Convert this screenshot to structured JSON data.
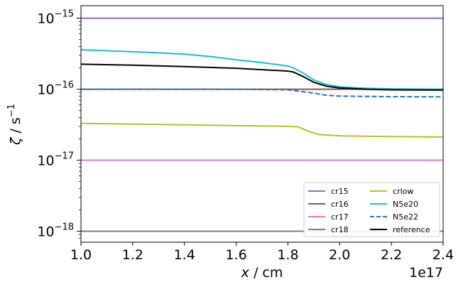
{
  "chart_data": {
    "type": "line",
    "xlabel": "x / cm",
    "ylabel": "ζ / s⁻¹",
    "x_offset_label": "1e17",
    "xlim": [
      1.0,
      2.4
    ],
    "ylim": [
      7e-19,
      1.5e-15
    ],
    "yscale": "log",
    "grid": false,
    "legend_position": "lower-right",
    "legend_columns": 2,
    "x_ticks": [
      1.0,
      1.2,
      1.4,
      1.6,
      1.8,
      2.0,
      2.2,
      2.4
    ],
    "x_tick_labels": [
      "1.0",
      "1.2",
      "1.4",
      "1.6",
      "1.8",
      "2.0",
      "2.2",
      "2.4"
    ],
    "y_major_ticks": [
      {
        "value": 1e-18,
        "base": "10",
        "exp": "−18"
      },
      {
        "value": 1e-17,
        "base": "10",
        "exp": "−17"
      },
      {
        "value": 1e-16,
        "base": "10",
        "exp": "−16"
      },
      {
        "value": 1e-15,
        "base": "10",
        "exp": "−15"
      }
    ],
    "series": [
      {
        "name": "cr15",
        "color": "#9467bd",
        "dash": "solid",
        "points": [
          [
            1.0,
            1e-15
          ],
          [
            2.4,
            1e-15
          ]
        ]
      },
      {
        "name": "cr16",
        "color": "#8c564b",
        "dash": "solid",
        "points": [
          [
            1.0,
            1e-16
          ],
          [
            2.4,
            1e-16
          ]
        ]
      },
      {
        "name": "cr17",
        "color": "#e377c2",
        "dash": "solid",
        "points": [
          [
            1.0,
            1e-17
          ],
          [
            2.4,
            1e-17
          ]
        ]
      },
      {
        "name": "cr18",
        "color": "#7f7f7f",
        "dash": "solid",
        "points": [
          [
            1.0,
            1e-18
          ],
          [
            2.4,
            1e-18
          ]
        ]
      },
      {
        "name": "crlow",
        "color": "#bcbd22",
        "dash": "solid",
        "points": [
          [
            1.0,
            3.3e-17
          ],
          [
            1.2,
            3.22e-17
          ],
          [
            1.4,
            3.15e-17
          ],
          [
            1.6,
            3.07e-17
          ],
          [
            1.8,
            3e-17
          ],
          [
            1.84,
            2.95e-17
          ],
          [
            1.88,
            2.55e-17
          ],
          [
            1.92,
            2.3e-17
          ],
          [
            2.0,
            2.2e-17
          ],
          [
            2.1,
            2.18e-17
          ],
          [
            2.2,
            2.15e-17
          ],
          [
            2.4,
            2.12e-17
          ]
        ]
      },
      {
        "name": "N5e20",
        "color": "#17becf",
        "dash": "solid",
        "points": [
          [
            1.0,
            3.6e-16
          ],
          [
            1.1,
            3.47e-16
          ],
          [
            1.2,
            3.37e-16
          ],
          [
            1.3,
            3.25e-16
          ],
          [
            1.4,
            3.12e-16
          ],
          [
            1.5,
            2.88e-16
          ],
          [
            1.6,
            2.6e-16
          ],
          [
            1.7,
            2.37e-16
          ],
          [
            1.8,
            2.12e-16
          ],
          [
            1.82,
            2e-16
          ],
          [
            1.86,
            1.68e-16
          ],
          [
            1.9,
            1.35e-16
          ],
          [
            1.95,
            1.16e-16
          ],
          [
            2.0,
            1.08e-16
          ],
          [
            2.1,
            1.03e-16
          ],
          [
            2.2,
            1.01e-16
          ],
          [
            2.4,
            1e-16
          ]
        ]
      },
      {
        "name": "N5e22",
        "color": "#1f77b4",
        "dash": "dashed",
        "points": [
          [
            1.0,
            1e-16
          ],
          [
            1.6,
            1e-16
          ],
          [
            1.8,
            9.8e-17
          ],
          [
            1.84,
            9.4e-17
          ],
          [
            1.9,
            8.8e-17
          ],
          [
            1.95,
            8.2e-17
          ],
          [
            2.0,
            8e-17
          ],
          [
            2.2,
            7.85e-17
          ],
          [
            2.4,
            7.8e-17
          ]
        ]
      },
      {
        "name": "reference",
        "color": "#000000",
        "dash": "solid",
        "points": [
          [
            1.0,
            2.25e-16
          ],
          [
            1.2,
            2.18e-16
          ],
          [
            1.4,
            2.08e-16
          ],
          [
            1.6,
            1.97e-16
          ],
          [
            1.7,
            1.88e-16
          ],
          [
            1.8,
            1.8e-16
          ],
          [
            1.82,
            1.75e-16
          ],
          [
            1.86,
            1.5e-16
          ],
          [
            1.9,
            1.25e-16
          ],
          [
            1.95,
            1.1e-16
          ],
          [
            2.0,
            1.04e-16
          ],
          [
            2.1,
            1e-16
          ],
          [
            2.2,
            9.8e-17
          ],
          [
            2.4,
            9.7e-17
          ]
        ]
      }
    ]
  }
}
